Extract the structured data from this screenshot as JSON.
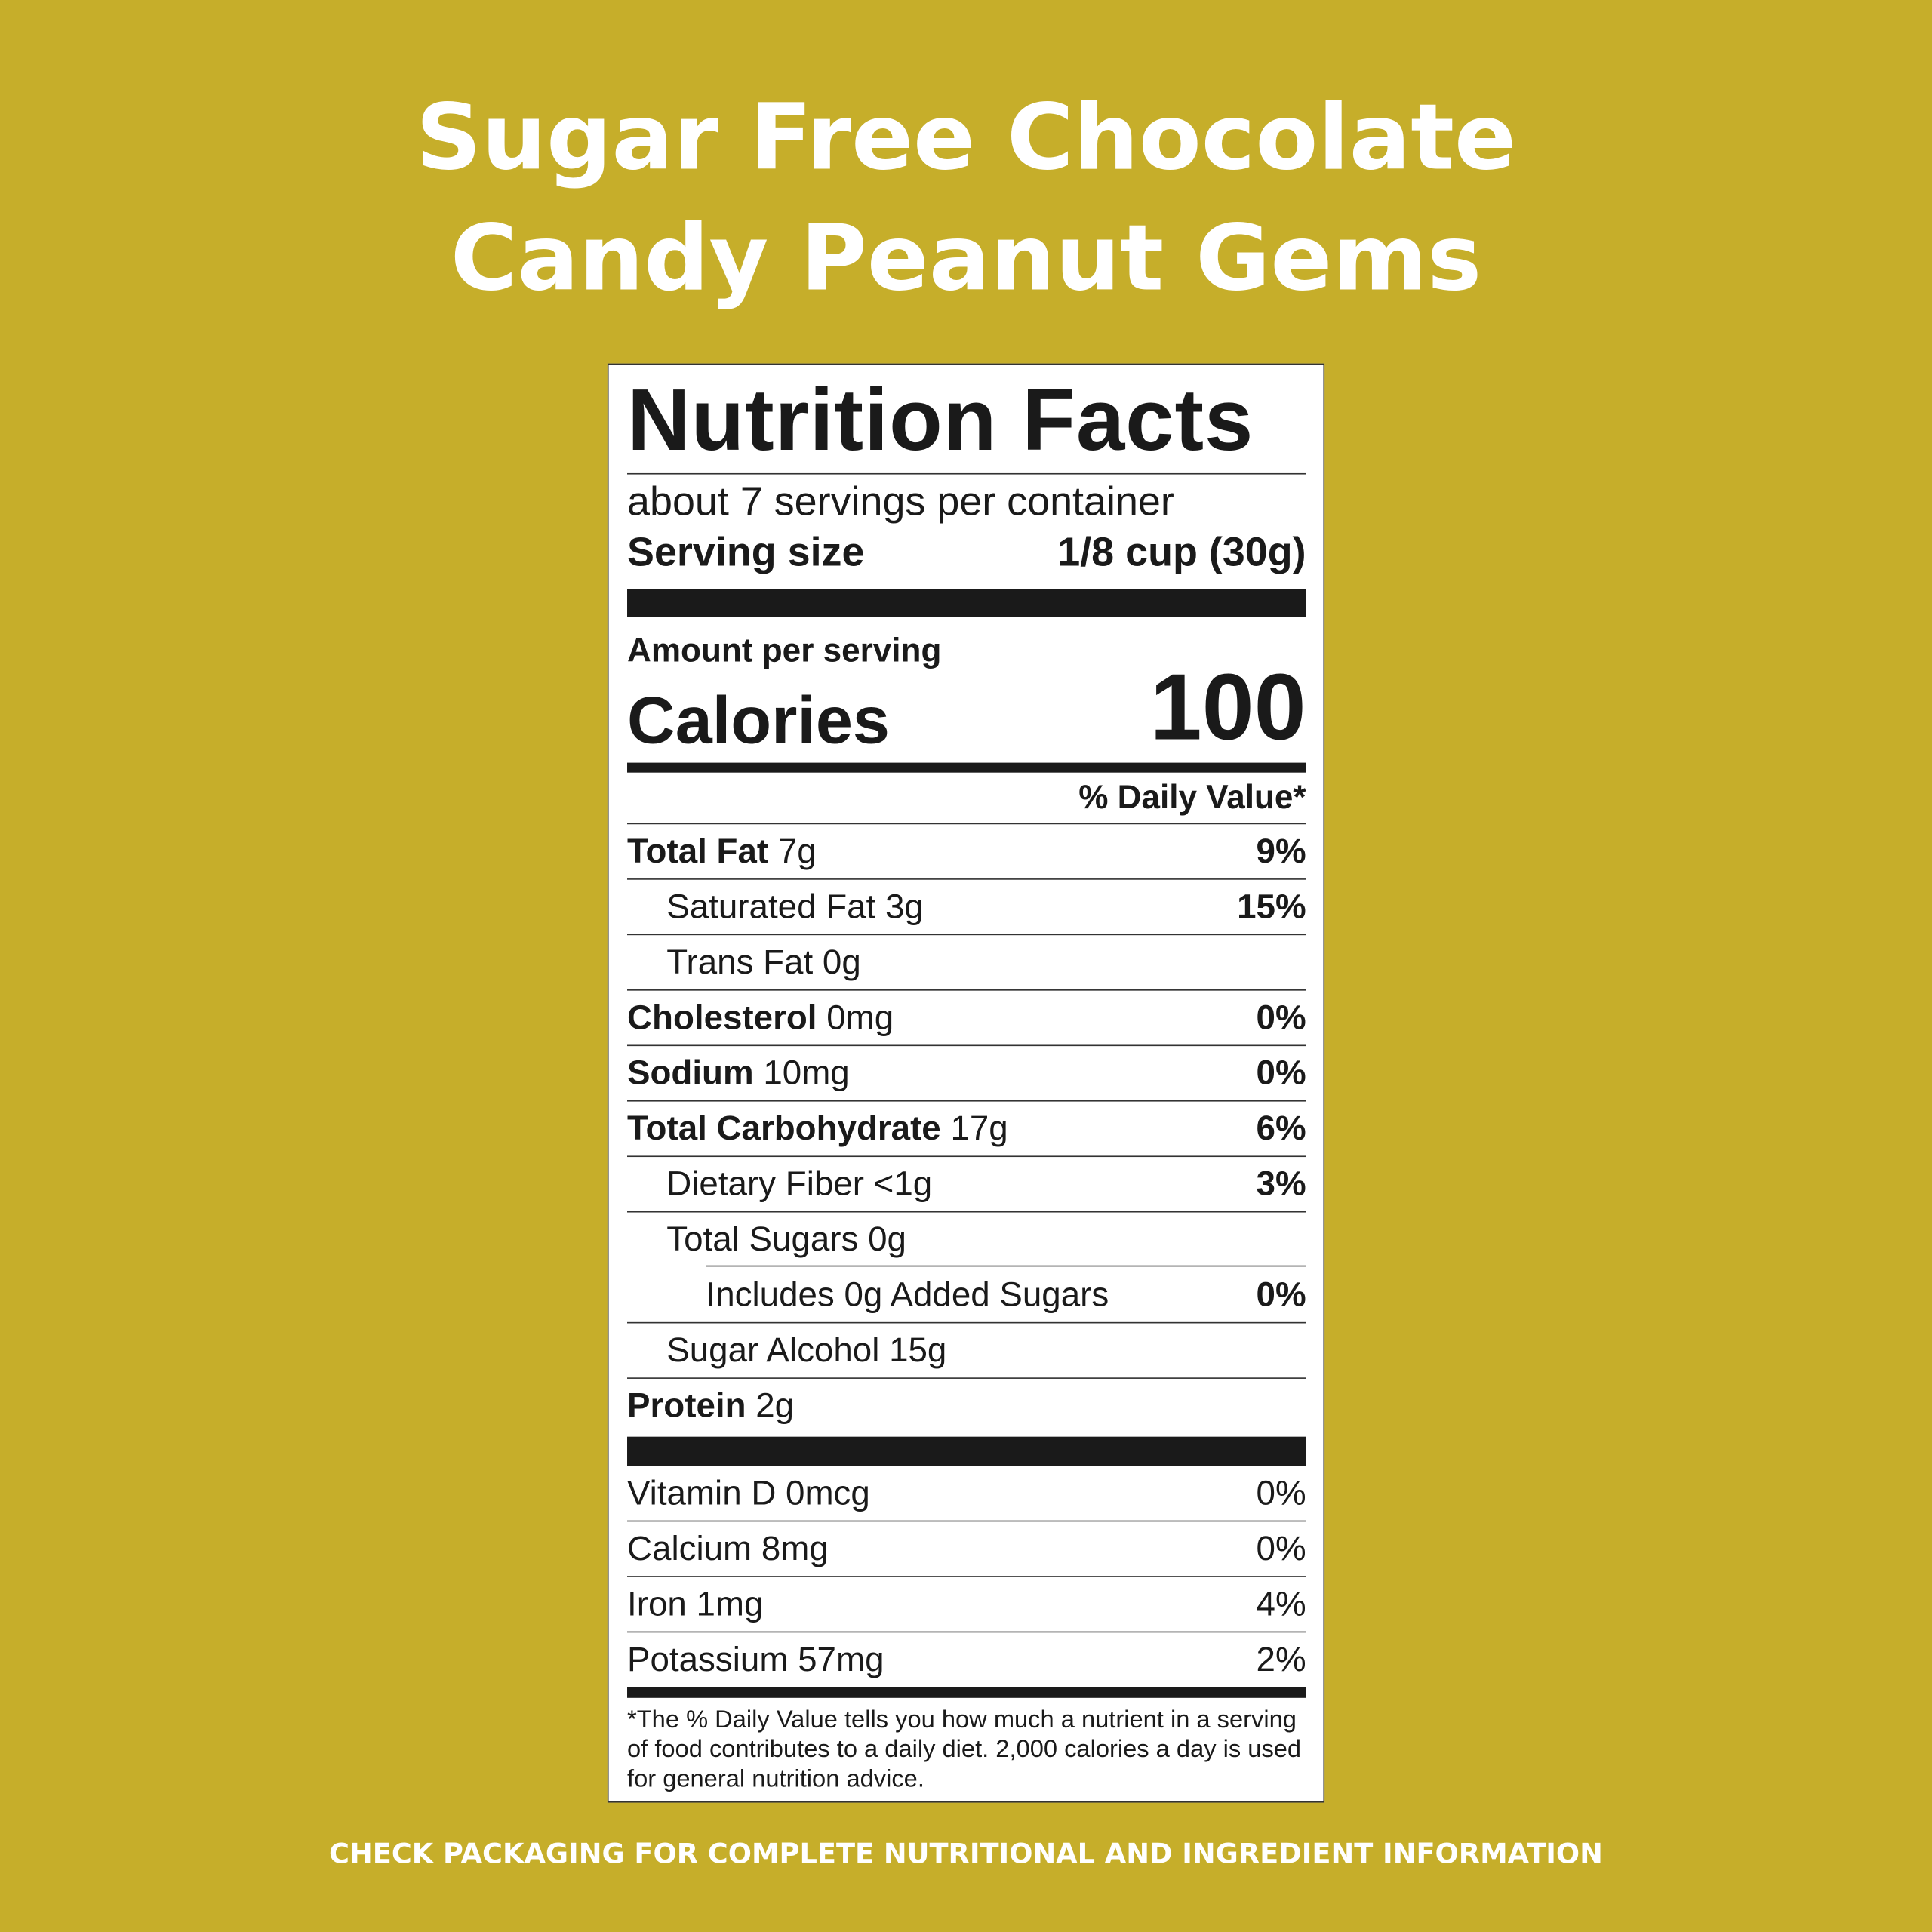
{
  "title_line1": "Sugar Free Chocolate",
  "title_line2": "Candy Peanut Gems",
  "label": {
    "heading": "Nutrition Facts",
    "servings_per_container": "about 7 servings per container",
    "serving_size_label": "Serving size",
    "serving_size_value": "1/8 cup (30g)",
    "amount_per_serving": "Amount per serving",
    "calories_label": "Calories",
    "calories_value": "100",
    "daily_value_header": "% Daily Value*",
    "nutrients": [
      {
        "name": "Total Fat",
        "amount": "7g",
        "dv": "9%"
      },
      {
        "name": "Saturated Fat",
        "amount": "3g",
        "dv": "15%"
      },
      {
        "name": "Trans Fat",
        "amount": "0g",
        "dv": ""
      },
      {
        "name": "Cholesterol",
        "amount": "0mg",
        "dv": "0%"
      },
      {
        "name": "Sodium",
        "amount": "10mg",
        "dv": "0%"
      },
      {
        "name": "Total Carbohydrate",
        "amount": "17g",
        "dv": "6%"
      },
      {
        "name": "Dietary Fiber",
        "amount": "<1g",
        "dv": "3%"
      },
      {
        "name": "Total Sugars",
        "amount": "0g",
        "dv": ""
      },
      {
        "name": "Includes 0g Added Sugars",
        "amount": "",
        "dv": "0%"
      },
      {
        "name": "Sugar Alcohol",
        "amount": "15g",
        "dv": ""
      },
      {
        "name": "Protein",
        "amount": "2g",
        "dv": ""
      }
    ],
    "vitamins": [
      {
        "name": "Vitamin D 0mcg",
        "dv": "0%"
      },
      {
        "name": "Calcium 8mg",
        "dv": "0%"
      },
      {
        "name": "Iron 1mg",
        "dv": "4%"
      },
      {
        "name": "Potassium 57mg",
        "dv": "2%"
      }
    ],
    "footnote": "*The % Daily Value tells you how much a nutrient in a serving of food contributes to a daily diet. 2,000 calories a day is used for general nutrition advice."
  },
  "bottom_note": "CHECK PACKAGING FOR COMPLETE NUTRITIONAL AND INGREDIENT INFORMATION",
  "colors": {
    "background": "#c6ae2a",
    "text_on_background": "#ffffff",
    "label_bg": "#ffffff"
  }
}
